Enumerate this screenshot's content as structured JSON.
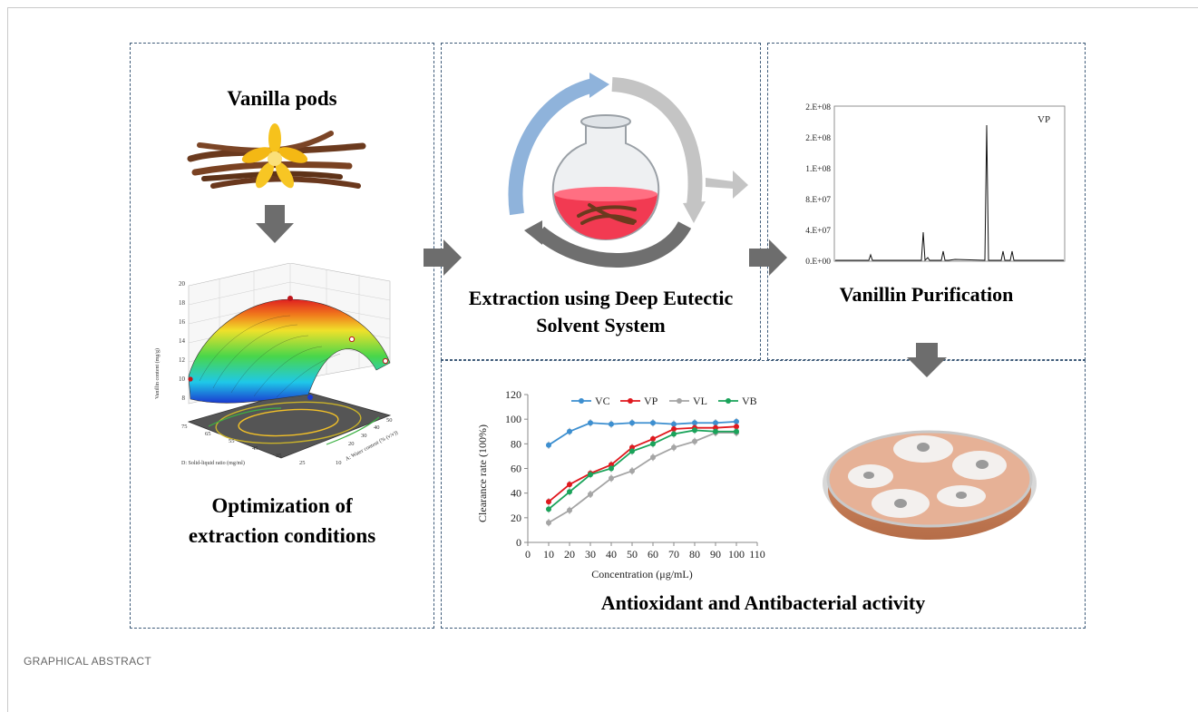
{
  "panels": {
    "optimization": {
      "title_top": "Vanilla pods",
      "title_bottom_1": "Optimization of",
      "title_bottom_2": "extraction conditions"
    },
    "extraction": {
      "title_1": "Extraction using Deep Eutectic",
      "title_2": "Solvent System"
    },
    "purification": {
      "title": "Vanillin Purification"
    },
    "activity": {
      "title": "Antioxidant and Antibacterial activity"
    }
  },
  "surface_plot": {
    "zlabel": "Vanillin content (mg/g)",
    "xlabel": "A: Water content (% (v/v))",
    "ylabel": "D: Solid-liquid ratio (mg/ml)",
    "z_ticks": [
      "20",
      "18",
      "16",
      "14",
      "12",
      "10",
      "8"
    ],
    "x_ticks": [
      "50",
      "40",
      "30",
      "20",
      "10"
    ],
    "y_ticks": [
      "75",
      "65",
      "55",
      "45",
      "35",
      "25"
    ]
  },
  "chromatogram": {
    "label": "VP",
    "y_ticks": [
      "2.E+08",
      "2.E+08",
      "1.E+08",
      "8.E+07",
      "4.E+07",
      "0.E+00"
    ]
  },
  "chart_data": {
    "type": "line",
    "xlabel": "Concentration  (μg/mL)",
    "ylabel": "Clearance rate (100%)",
    "xlim": [
      0,
      110
    ],
    "ylim": [
      0,
      120
    ],
    "x_ticks": [
      0,
      10,
      20,
      30,
      40,
      50,
      60,
      70,
      80,
      90,
      100,
      110
    ],
    "y_ticks": [
      0,
      20,
      40,
      60,
      80,
      100,
      120
    ],
    "legend_position": "top",
    "x": [
      10,
      20,
      30,
      40,
      50,
      60,
      70,
      80,
      90,
      100
    ],
    "series": [
      {
        "name": "VC",
        "color": "#3d8fd0",
        "values": [
          79,
          90,
          97,
          96,
          97,
          97,
          96,
          97,
          97,
          98
        ]
      },
      {
        "name": "VP",
        "color": "#e0181e",
        "values": [
          33,
          47,
          56,
          63,
          77,
          84,
          92,
          93,
          93,
          94
        ]
      },
      {
        "name": "VL",
        "color": "#a5a5a5",
        "values": [
          16,
          26,
          39,
          52,
          58,
          69,
          77,
          82,
          89,
          89
        ]
      },
      {
        "name": "VB",
        "color": "#1aa35a",
        "values": [
          27,
          41,
          55,
          60,
          74,
          80,
          88,
          91,
          90,
          90
        ]
      }
    ]
  }
}
